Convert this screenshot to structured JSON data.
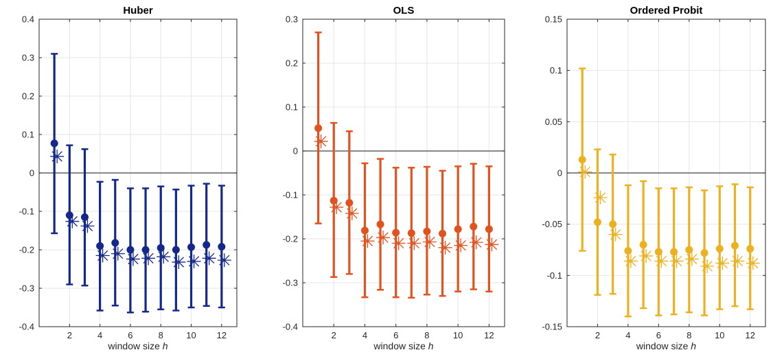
{
  "chart_data": [
    {
      "type": "errorbar",
      "title": "Huber",
      "xlabel": "window size",
      "xlabel_italic": "h",
      "x": [
        1,
        2,
        3,
        4,
        5,
        6,
        7,
        8,
        9,
        10,
        11,
        12
      ],
      "xlim": [
        0,
        13
      ],
      "xticks": [
        2,
        4,
        6,
        8,
        10,
        12
      ],
      "ylim": [
        -0.4,
        0.4
      ],
      "yticks": [
        -0.4,
        -0.3,
        -0.2,
        -0.1,
        0,
        0.1,
        0.2,
        0.3,
        0.4
      ],
      "ytick_labels": [
        "-0.4",
        "-0.3",
        "-0.2",
        "-0.1",
        "0",
        "0.1",
        "0.2",
        "0.3",
        "0.4"
      ],
      "grid": true,
      "color": "#14288c",
      "point_estimate": [
        0.077,
        -0.11,
        -0.115,
        -0.19,
        -0.182,
        -0.2,
        -0.2,
        -0.195,
        -0.2,
        -0.193,
        -0.187,
        -0.192
      ],
      "upper": [
        0.31,
        0.072,
        0.062,
        -0.023,
        -0.018,
        -0.04,
        -0.04,
        -0.035,
        -0.043,
        -0.033,
        -0.028,
        -0.033
      ],
      "lower": [
        -0.157,
        -0.29,
        -0.293,
        -0.358,
        -0.345,
        -0.363,
        -0.361,
        -0.355,
        -0.358,
        -0.35,
        -0.346,
        -0.35
      ],
      "star_marker": [
        0.043,
        -0.126,
        -0.138,
        -0.215,
        -0.21,
        -0.224,
        -0.222,
        -0.218,
        -0.232,
        -0.23,
        -0.222,
        -0.227
      ]
    },
    {
      "type": "errorbar",
      "title": "OLS",
      "xlabel": "window size",
      "xlabel_italic": "h",
      "x": [
        1,
        2,
        3,
        4,
        5,
        6,
        7,
        8,
        9,
        10,
        11,
        12
      ],
      "xlim": [
        0,
        13
      ],
      "xticks": [
        2,
        4,
        6,
        8,
        10,
        12
      ],
      "ylim": [
        -0.4,
        0.3
      ],
      "yticks": [
        -0.4,
        -0.3,
        -0.2,
        -0.1,
        0,
        0.1,
        0.2,
        0.3
      ],
      "ytick_labels": [
        "-0.4",
        "-0.3",
        "-0.2",
        "-0.1",
        "0",
        "0.1",
        "0.2",
        "0.3"
      ],
      "grid": true,
      "color": "#e1521e",
      "point_estimate": [
        0.052,
        -0.113,
        -0.118,
        -0.181,
        -0.167,
        -0.186,
        -0.187,
        -0.183,
        -0.188,
        -0.178,
        -0.172,
        -0.178
      ],
      "upper": [
        0.27,
        0.064,
        0.045,
        -0.028,
        -0.018,
        -0.038,
        -0.038,
        -0.036,
        -0.045,
        -0.035,
        -0.029,
        -0.035
      ],
      "lower": [
        -0.165,
        -0.287,
        -0.28,
        -0.333,
        -0.316,
        -0.333,
        -0.334,
        -0.327,
        -0.33,
        -0.32,
        -0.315,
        -0.32
      ],
      "star_marker": [
        0.022,
        -0.128,
        -0.142,
        -0.205,
        -0.197,
        -0.21,
        -0.21,
        -0.207,
        -0.22,
        -0.215,
        -0.208,
        -0.213
      ]
    },
    {
      "type": "errorbar",
      "title": "Ordered Probit",
      "xlabel": "window size",
      "xlabel_italic": "h",
      "x": [
        1,
        2,
        3,
        4,
        5,
        6,
        7,
        8,
        9,
        10,
        11,
        12
      ],
      "xlim": [
        0,
        13
      ],
      "xticks": [
        2,
        4,
        6,
        8,
        10,
        12
      ],
      "ylim": [
        -0.15,
        0.15
      ],
      "yticks": [
        -0.15,
        -0.1,
        -0.05,
        0,
        0.05,
        0.1,
        0.15
      ],
      "ytick_labels": [
        "-0.15",
        "-0.1",
        "-0.05",
        "0",
        "0.05",
        "0.1",
        "0.15"
      ],
      "grid": true,
      "color": "#edb120",
      "point_estimate": [
        0.013,
        -0.048,
        -0.05,
        -0.076,
        -0.07,
        -0.077,
        -0.077,
        -0.075,
        -0.078,
        -0.074,
        -0.071,
        -0.074
      ],
      "upper": [
        0.102,
        0.023,
        0.018,
        -0.012,
        -0.008,
        -0.015,
        -0.015,
        -0.014,
        -0.017,
        -0.013,
        -0.011,
        -0.014
      ],
      "lower": [
        -0.076,
        -0.119,
        -0.118,
        -0.14,
        -0.132,
        -0.139,
        -0.138,
        -0.136,
        -0.139,
        -0.133,
        -0.13,
        -0.133
      ],
      "star_marker": [
        0.001,
        -0.024,
        -0.06,
        -0.086,
        -0.081,
        -0.086,
        -0.086,
        -0.084,
        -0.091,
        -0.088,
        -0.086,
        -0.088
      ]
    }
  ]
}
